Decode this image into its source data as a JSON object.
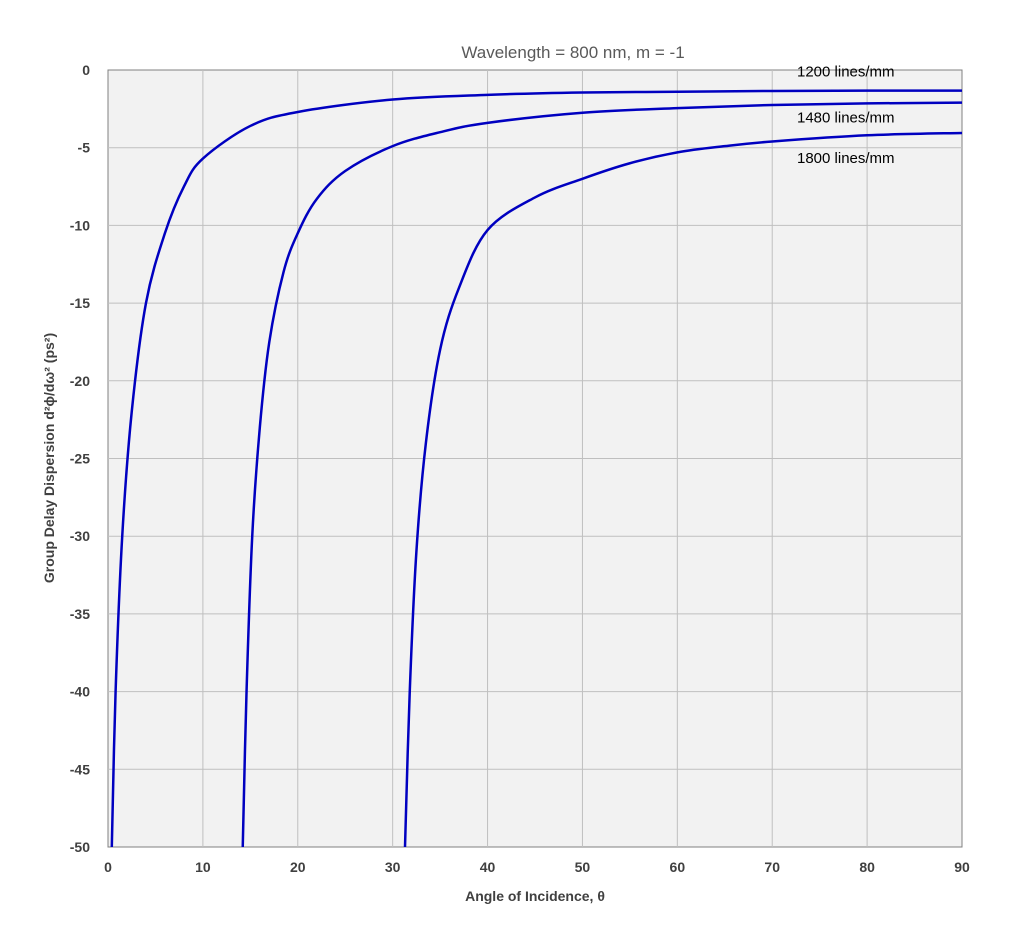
{
  "chart_data": {
    "type": "line",
    "title": "Wavelength = 800 nm, m = -1",
    "xlabel": "Angle of Incidence, θ",
    "ylabel": "Group Delay Dispersion d²ϕ/dω² (ps²)",
    "xlim": [
      0,
      90
    ],
    "ylim": [
      -50,
      0
    ],
    "xticks": [
      "0",
      "10",
      "20",
      "30",
      "40",
      "50",
      "60",
      "70",
      "80",
      "90"
    ],
    "yticks": [
      "0",
      "-5",
      "-10",
      "-15",
      "-20",
      "-25",
      "-30",
      "-35",
      "-40",
      "-45",
      "-50"
    ],
    "grid": true,
    "line_color": "#0000c0",
    "series": [
      {
        "name": "1200 lines/mm",
        "x": [
          0.4,
          0.8,
          1.5,
          2.5,
          4,
          6,
          8,
          10,
          15,
          20,
          30,
          40,
          50,
          60,
          70,
          80,
          90
        ],
        "y": [
          -50,
          -40,
          -30,
          -22,
          -15,
          -10.5,
          -7.5,
          -5.7,
          -3.6,
          -2.7,
          -1.9,
          -1.6,
          -1.45,
          -1.4,
          -1.35,
          -1.33,
          -1.33
        ]
      },
      {
        "name": "1480 lines/mm",
        "x": [
          14.2,
          14.6,
          15.2,
          16,
          17,
          18.5,
          20,
          22,
          25,
          30,
          35,
          40,
          50,
          60,
          70,
          80,
          90
        ],
        "y": [
          -50,
          -40,
          -30,
          -23,
          -17.5,
          -13,
          -10.5,
          -8.3,
          -6.5,
          -4.9,
          -4,
          -3.4,
          -2.75,
          -2.45,
          -2.25,
          -2.15,
          -2.1
        ]
      },
      {
        "name": "1800 lines/mm",
        "x": [
          31.3,
          31.8,
          32.5,
          33.5,
          35,
          37,
          40,
          45,
          50,
          55,
          60,
          65,
          70,
          80,
          90
        ],
        "y": [
          -50,
          -40,
          -31,
          -24,
          -18,
          -14,
          -10.3,
          -8.2,
          -7,
          -6,
          -5.3,
          -4.9,
          -4.6,
          -4.2,
          -4.05
        ]
      }
    ]
  }
}
